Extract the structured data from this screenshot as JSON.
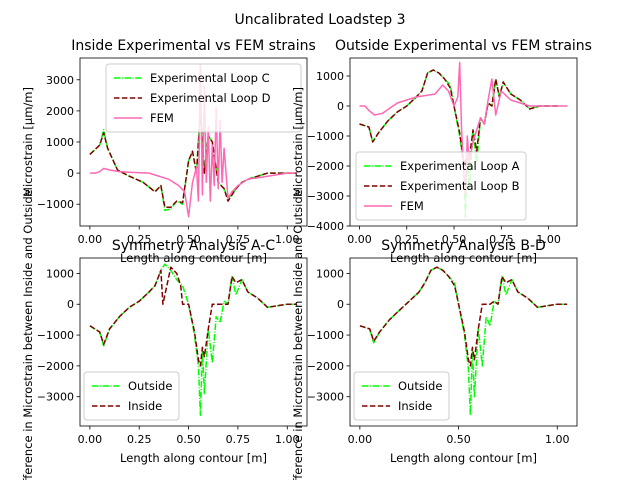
{
  "figure": {
    "title": "Uncalibrated Loadstep 3"
  },
  "chart_data": [
    {
      "type": "line",
      "title": "Inside Experimental vs FEM strains",
      "xlabel": "Length along contour [m]",
      "ylabel": "Microstrain [μm/m]",
      "xlim": [
        -0.05,
        1.1
      ],
      "ylim": [
        -1700,
        3700
      ],
      "xticks": [
        "0.00",
        "0.25",
        "0.50",
        "0.75",
        "1.00"
      ],
      "xtick_values": [
        0,
        0.25,
        0.5,
        0.75,
        1.0
      ],
      "yticks": [
        "−1000",
        "0",
        "1000",
        "2000",
        "3000"
      ],
      "ytick_values": [
        -1000,
        0,
        1000,
        2000,
        3000
      ],
      "grid": false,
      "legend_position": "top-right",
      "series": [
        {
          "name": "Experimental Loop C",
          "color": "#00ff00",
          "style": "dashdot",
          "x": [
            0,
            0.05,
            0.07,
            0.09,
            0.14,
            0.2,
            0.27,
            0.33,
            0.36,
            0.38,
            0.41,
            0.44,
            0.47,
            0.5,
            0.52,
            0.54,
            0.56,
            0.58,
            0.6,
            0.62,
            0.65,
            0.68,
            0.7,
            0.72,
            0.74,
            0.77,
            0.8,
            0.85,
            0.9,
            0.95,
            1.0,
            1.05
          ],
          "y": [
            600,
            900,
            1400,
            800,
            100,
            -100,
            -300,
            -600,
            -400,
            -1200,
            -1150,
            -900,
            -1000,
            400,
            700,
            0,
            2200,
            0,
            1200,
            1000,
            -300,
            -500,
            -800,
            -700,
            -500,
            -300,
            -200,
            -100,
            0,
            0,
            0,
            0
          ]
        },
        {
          "name": "Experimental Loop D",
          "color": "#800000",
          "style": "dashed",
          "x": [
            0,
            0.05,
            0.07,
            0.09,
            0.14,
            0.2,
            0.27,
            0.33,
            0.36,
            0.38,
            0.41,
            0.44,
            0.47,
            0.5,
            0.52,
            0.54,
            0.56,
            0.58,
            0.6,
            0.62,
            0.65,
            0.68,
            0.7,
            0.72,
            0.74,
            0.77,
            0.8,
            0.85,
            0.9,
            0.95,
            1.0,
            1.05
          ],
          "y": [
            600,
            900,
            1300,
            800,
            100,
            -100,
            -300,
            -600,
            -400,
            -1100,
            -1100,
            -900,
            -950,
            400,
            700,
            0,
            2000,
            0,
            1200,
            1000,
            -300,
            -500,
            -900,
            -700,
            -500,
            -300,
            -200,
            -100,
            0,
            0,
            0,
            0
          ]
        },
        {
          "name": "FEM",
          "color": "#ff69b4",
          "style": "solid",
          "x": [
            0,
            0.03,
            0.05,
            0.07,
            0.1,
            0.15,
            0.2,
            0.3,
            0.4,
            0.45,
            0.48,
            0.5,
            0.52,
            0.54,
            0.55,
            0.56,
            0.57,
            0.58,
            0.59,
            0.6,
            0.61,
            0.62,
            0.63,
            0.64,
            0.65,
            0.66,
            0.67,
            0.68,
            0.7,
            0.72,
            0.75,
            0.8,
            0.9,
            1.0,
            1.05
          ],
          "y": [
            0,
            0,
            50,
            150,
            100,
            50,
            30,
            0,
            -200,
            -400,
            -600,
            -1400,
            -300,
            200,
            -900,
            3500,
            -700,
            2800,
            -300,
            1500,
            -900,
            900,
            -400,
            2100,
            -500,
            1700,
            -300,
            800,
            -800,
            -600,
            -400,
            -200,
            -100,
            0,
            0
          ]
        }
      ]
    },
    {
      "type": "line",
      "title": "Outside Experimental vs FEM strains",
      "xlabel": "Length along contour [m]",
      "ylabel": "Microstrain [μm/m]",
      "xlim": [
        -0.05,
        1.15
      ],
      "ylim": [
        -4000,
        1600
      ],
      "xticks": [
        "0.00",
        "0.25",
        "0.50",
        "0.75",
        "1.00"
      ],
      "xtick_values": [
        0,
        0.25,
        0.5,
        0.75,
        1.0
      ],
      "yticks": [
        "−4000",
        "−3000",
        "−2000",
        "−1000",
        "0",
        "1000"
      ],
      "ytick_values": [
        -4000,
        -3000,
        -2000,
        -1000,
        0,
        1000
      ],
      "grid": false,
      "legend_position": "bottom-left",
      "series": [
        {
          "name": "Experimental Loop A",
          "color": "#00ff00",
          "style": "dashdot",
          "x": [
            0,
            0.05,
            0.07,
            0.1,
            0.15,
            0.2,
            0.25,
            0.3,
            0.33,
            0.36,
            0.39,
            0.42,
            0.45,
            0.48,
            0.5,
            0.53,
            0.55,
            0.56,
            0.57,
            0.58,
            0.6,
            0.62,
            0.64,
            0.66,
            0.68,
            0.7,
            0.72,
            0.74,
            0.76,
            0.8,
            0.85,
            0.9,
            0.95,
            1.0,
            1.05
          ],
          "y": [
            -600,
            -700,
            -1200,
            -900,
            -500,
            -200,
            0,
            300,
            500,
            1100,
            1200,
            1100,
            900,
            700,
            0,
            -1000,
            -2000,
            -3700,
            -1500,
            -2800,
            -800,
            -1900,
            -400,
            -600,
            100,
            0,
            900,
            300,
            800,
            400,
            200,
            -100,
            0,
            0,
            0
          ]
        },
        {
          "name": "Experimental Loop B",
          "color": "#800000",
          "style": "dashed",
          "x": [
            0,
            0.05,
            0.07,
            0.1,
            0.15,
            0.2,
            0.25,
            0.3,
            0.33,
            0.36,
            0.39,
            0.42,
            0.45,
            0.48,
            0.5,
            0.53,
            0.55,
            0.56,
            0.57,
            0.58,
            0.6,
            0.62,
            0.64,
            0.66,
            0.68,
            0.7,
            0.72,
            0.74,
            0.76,
            0.8,
            0.85,
            0.9,
            0.95,
            1.0,
            1.05
          ],
          "y": [
            -600,
            -700,
            -1200,
            -900,
            -500,
            -200,
            0,
            300,
            500,
            1100,
            1200,
            1100,
            900,
            600,
            0,
            -900,
            -1800,
            -2000,
            -1400,
            -1800,
            -800,
            -1500,
            -400,
            -600,
            100,
            0,
            900,
            300,
            800,
            400,
            200,
            -100,
            0,
            0,
            0
          ]
        },
        {
          "name": "FEM",
          "color": "#ff69b4",
          "style": "solid",
          "x": [
            0,
            0.03,
            0.05,
            0.08,
            0.12,
            0.2,
            0.3,
            0.35,
            0.4,
            0.44,
            0.47,
            0.5,
            0.52,
            0.53,
            0.54,
            0.55,
            0.56,
            0.57,
            0.58,
            0.6,
            0.62,
            0.64,
            0.66,
            0.68,
            0.7,
            0.72,
            0.75,
            0.8,
            0.85,
            0.9,
            1.0,
            1.1
          ],
          "y": [
            0,
            0,
            -150,
            -300,
            -250,
            100,
            300,
            350,
            400,
            700,
            500,
            0,
            300,
            1450,
            -800,
            -2000,
            -3000,
            -1000,
            -1900,
            -1200,
            -800,
            -400,
            -600,
            200,
            900,
            -300,
            500,
            200,
            100,
            0,
            0,
            0
          ]
        }
      ]
    },
    {
      "type": "line",
      "title": "Symmetry Analysis A-C",
      "xlabel": "Length along contour [m]",
      "ylabel": "Difference in Microstrain between Inside and Outside",
      "xlim": [
        -0.05,
        1.1
      ],
      "ylim": [
        -3950,
        1500
      ],
      "xticks": [
        "0.00",
        "0.25",
        "0.50",
        "0.75",
        "1.00"
      ],
      "xtick_values": [
        0,
        0.25,
        0.5,
        0.75,
        1.0
      ],
      "yticks": [
        "−3000",
        "−2000",
        "−1000",
        "0",
        "1000"
      ],
      "ytick_values": [
        -3000,
        -2000,
        -1000,
        0,
        1000
      ],
      "grid": false,
      "legend_position": "bottom-left",
      "series": [
        {
          "name": "Outside",
          "color": "#00ff00",
          "style": "dashdot",
          "x": [
            0,
            0.05,
            0.07,
            0.1,
            0.15,
            0.2,
            0.25,
            0.3,
            0.33,
            0.36,
            0.38,
            0.41,
            0.44,
            0.47,
            0.5,
            0.53,
            0.55,
            0.56,
            0.57,
            0.58,
            0.6,
            0.62,
            0.64,
            0.66,
            0.68,
            0.7,
            0.72,
            0.74,
            0.77,
            0.8,
            0.85,
            0.9,
            1.0,
            1.05
          ],
          "y": [
            -700,
            -900,
            -1350,
            -800,
            -400,
            -100,
            100,
            400,
            600,
            1100,
            1300,
            1100,
            800,
            600,
            0,
            -1000,
            -2000,
            -3600,
            -1500,
            -2900,
            -800,
            -1900,
            -400,
            -600,
            100,
            0,
            900,
            300,
            800,
            400,
            200,
            -100,
            0,
            0
          ]
        },
        {
          "name": "Inside",
          "color": "#800000",
          "style": "dashed",
          "x": [
            0,
            0.05,
            0.07,
            0.1,
            0.15,
            0.2,
            0.25,
            0.3,
            0.33,
            0.36,
            0.37,
            0.41,
            0.44,
            0.46,
            0.47,
            0.5,
            0.53,
            0.55,
            0.56,
            0.57,
            0.58,
            0.6,
            0.62,
            0.64,
            0.66,
            0.68,
            0.7,
            0.72,
            0.74,
            0.77,
            0.8,
            0.85,
            0.9,
            1.0,
            1.05
          ],
          "y": [
            -700,
            -900,
            -1300,
            -800,
            -400,
            -100,
            100,
            400,
            600,
            1100,
            0,
            1200,
            1000,
            600,
            0,
            0,
            -900,
            -1800,
            -2000,
            -1400,
            -1700,
            -800,
            0,
            0,
            0,
            0,
            0,
            900,
            700,
            800,
            400,
            200,
            -100,
            0,
            0
          ]
        }
      ]
    },
    {
      "type": "line",
      "title": "Symmetry Analysis B-D",
      "xlabel": "Length along contour [m]",
      "ylabel": "Difference in Microstrain between Inside and Outside",
      "xlim": [
        -0.05,
        1.1
      ],
      "ylim": [
        -3950,
        1500
      ],
      "xticks": [
        "0.00",
        "0.50",
        "1.00"
      ],
      "xtick_values": [
        0,
        0.5,
        1.0
      ],
      "yticks": [
        "−3000",
        "−2000",
        "−1000",
        "0",
        "1000"
      ],
      "ytick_values": [
        -3000,
        -2000,
        -1000,
        0,
        1000
      ],
      "grid": false,
      "legend_position": "bottom-left",
      "series": [
        {
          "name": "Outside",
          "color": "#00ff00",
          "style": "dashdot",
          "x": [
            0,
            0.05,
            0.07,
            0.1,
            0.15,
            0.2,
            0.25,
            0.3,
            0.33,
            0.36,
            0.39,
            0.42,
            0.45,
            0.48,
            0.5,
            0.53,
            0.55,
            0.56,
            0.57,
            0.58,
            0.6,
            0.62,
            0.64,
            0.66,
            0.68,
            0.7,
            0.72,
            0.74,
            0.77,
            0.8,
            0.85,
            0.9,
            1.0,
            1.05
          ],
          "y": [
            -700,
            -800,
            -1250,
            -900,
            -500,
            -200,
            100,
            400,
            700,
            1100,
            1200,
            1100,
            900,
            700,
            0,
            -1000,
            -2100,
            -3600,
            -1500,
            -3000,
            -800,
            -2000,
            -400,
            -700,
            100,
            0,
            900,
            300,
            800,
            400,
            200,
            -100,
            0,
            0
          ]
        },
        {
          "name": "Inside",
          "color": "#800000",
          "style": "dashed",
          "x": [
            0,
            0.05,
            0.07,
            0.1,
            0.15,
            0.2,
            0.25,
            0.3,
            0.33,
            0.36,
            0.39,
            0.42,
            0.45,
            0.48,
            0.5,
            0.53,
            0.55,
            0.56,
            0.57,
            0.58,
            0.6,
            0.62,
            0.64,
            0.66,
            0.68,
            0.7,
            0.72,
            0.74,
            0.77,
            0.8,
            0.85,
            0.9,
            1.0,
            1.05
          ],
          "y": [
            -700,
            -800,
            -1200,
            -900,
            -500,
            -200,
            100,
            400,
            700,
            1100,
            1200,
            1100,
            900,
            600,
            0,
            -900,
            -1800,
            -2000,
            -1400,
            -1800,
            -800,
            0,
            0,
            0,
            100,
            0,
            900,
            700,
            800,
            400,
            200,
            -100,
            0,
            0
          ]
        }
      ]
    }
  ]
}
